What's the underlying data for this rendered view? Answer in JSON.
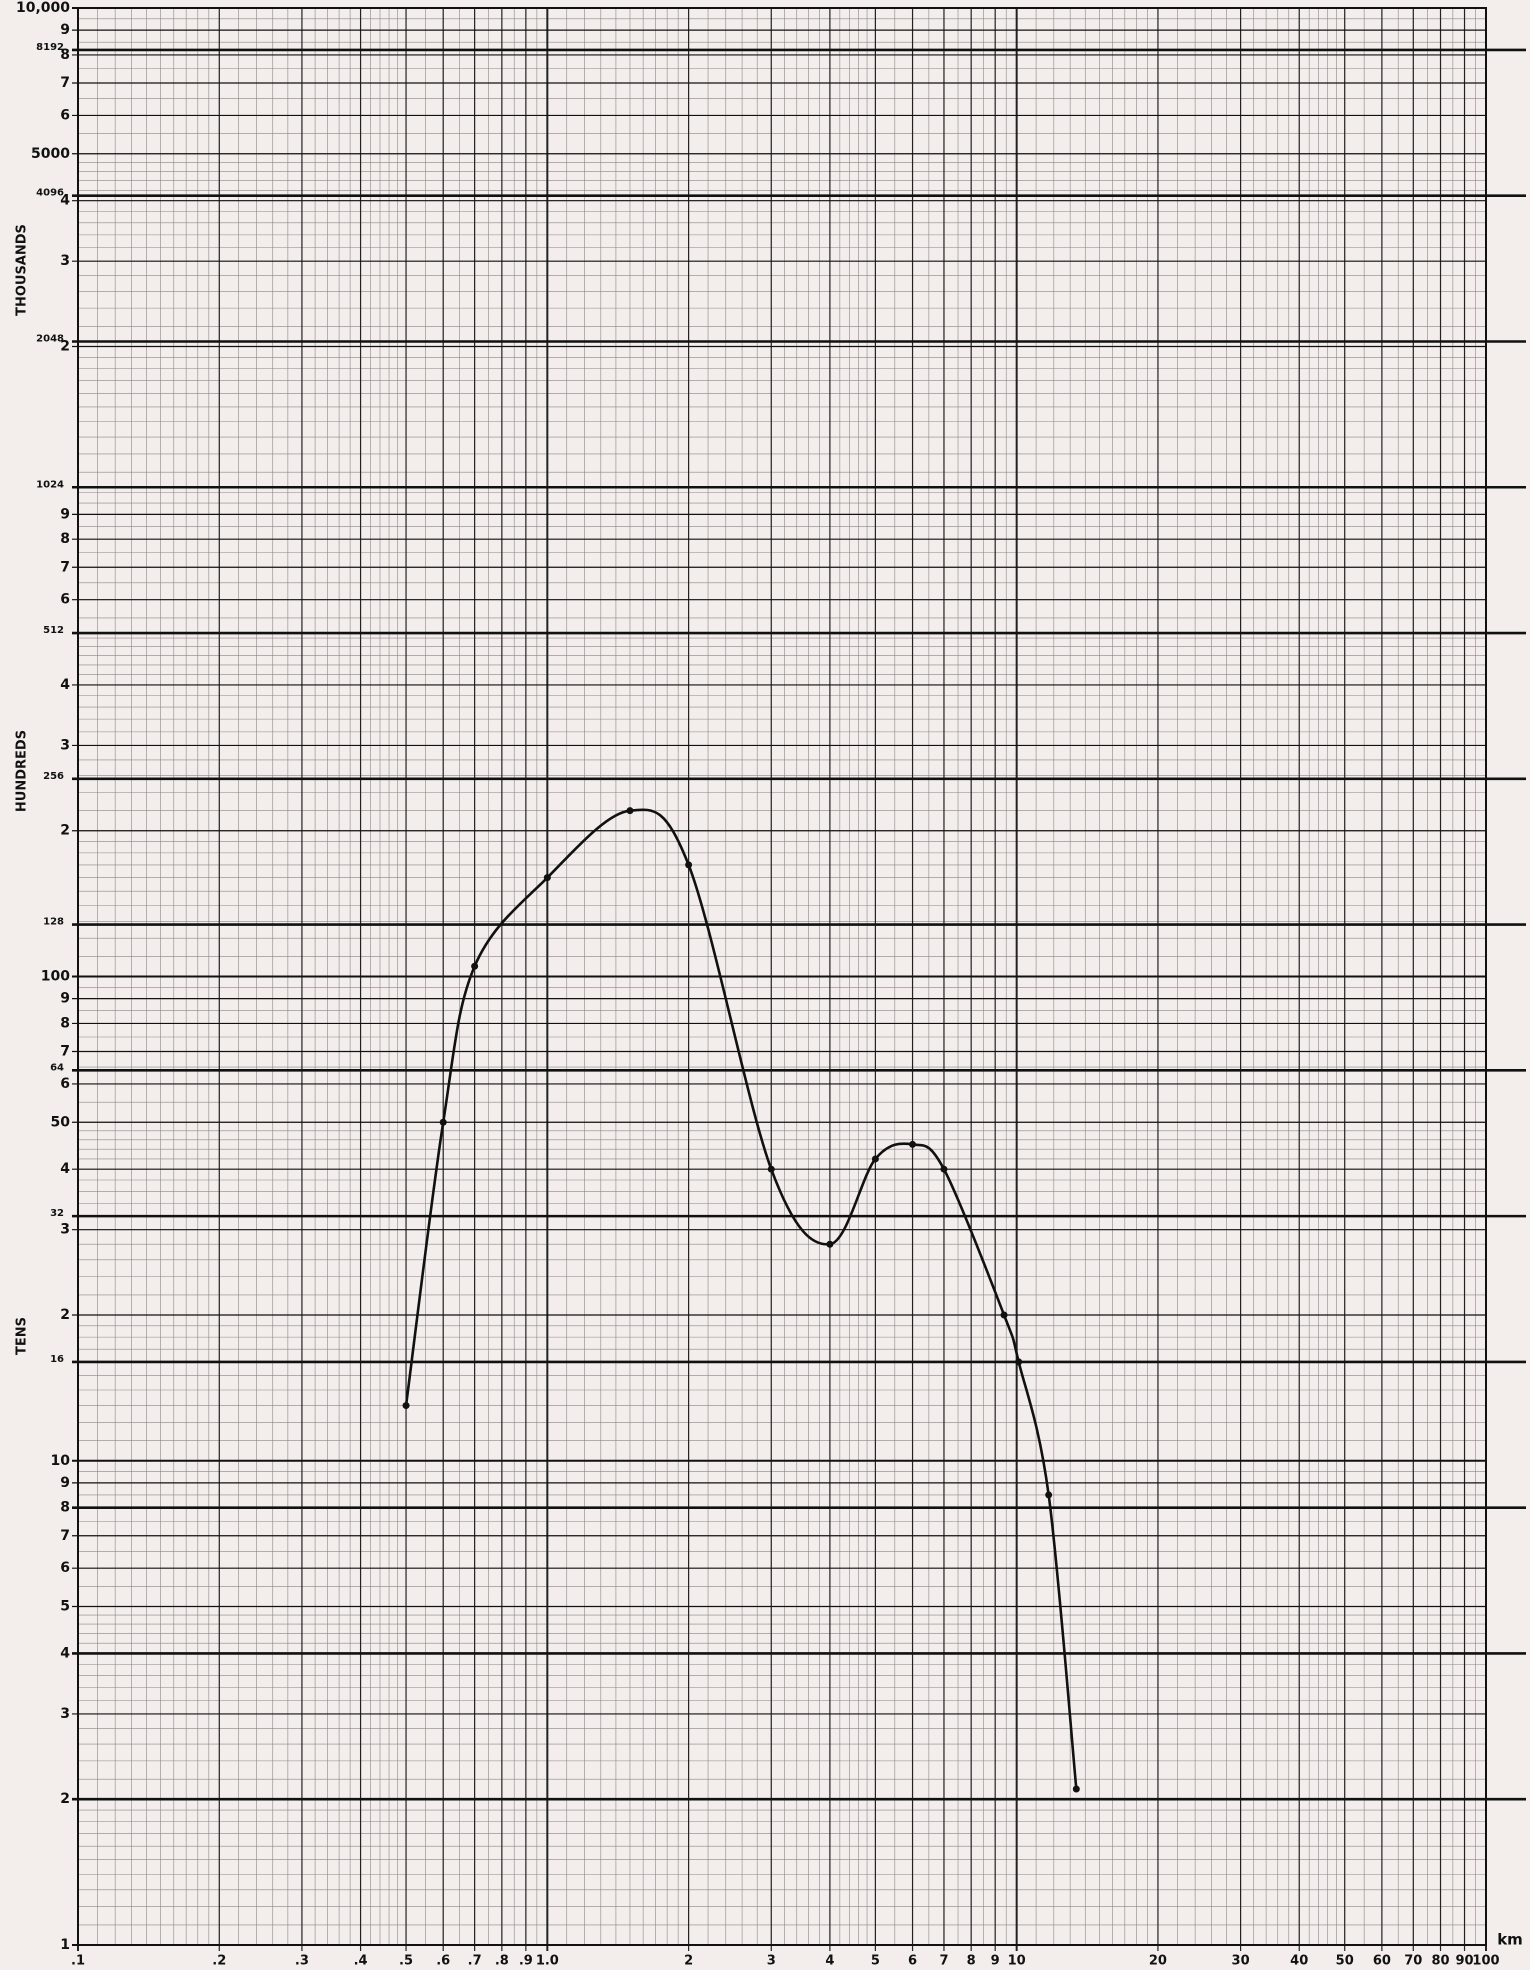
{
  "chart_data": {
    "type": "line",
    "axis_labels": {
      "thousands": "THOUSANDS",
      "hundreds": "HUNDREDS",
      "tens": "TENS"
    },
    "x_unit": "km",
    "x": [
      0.5,
      0.6,
      0.7,
      1.0,
      1.5,
      2.0,
      3.0,
      4.0,
      5.0,
      6.0,
      7.0,
      9.4,
      10.1,
      11.7,
      13.4
    ],
    "values": [
      13,
      50,
      105,
      160,
      220,
      170,
      40,
      28,
      42,
      45,
      40,
      20,
      16,
      8.5,
      2.1
    ],
    "color": "#111111",
    "xscale": "log",
    "yscale": "log",
    "xlim": [
      0.1,
      100
    ],
    "ylim": [
      1,
      10000
    ],
    "xticks": [
      {
        "value": 0.1,
        "label": ".1"
      },
      {
        "value": 0.2,
        "label": ".2"
      },
      {
        "value": 0.3,
        "label": ".3"
      },
      {
        "value": 0.4,
        "label": ".4"
      },
      {
        "value": 0.5,
        "label": ".5"
      },
      {
        "value": 0.6,
        "label": ".6"
      },
      {
        "value": 0.7,
        "label": ".7"
      },
      {
        "value": 0.8,
        "label": ".8"
      },
      {
        "value": 0.9,
        "label": ".9"
      },
      {
        "value": 1,
        "label": "1.0"
      },
      2,
      3,
      4,
      5,
      6,
      7,
      8,
      9,
      10,
      20,
      30,
      40,
      50,
      60,
      70,
      80,
      90,
      100
    ],
    "yticks": [
      {
        "value": 10000,
        "label": "10,000"
      },
      {
        "value": 9000,
        "label": "9"
      },
      8192,
      {
        "value": 8000,
        "label": "8"
      },
      {
        "value": 7000,
        "label": "7"
      },
      {
        "value": 6000,
        "label": "6"
      },
      5000,
      4096,
      {
        "value": 4000,
        "label": "4"
      },
      {
        "value": 3000,
        "label": "3"
      },
      2048,
      {
        "value": 2000,
        "label": "2"
      },
      1024,
      {
        "value": 900,
        "label": "9"
      },
      {
        "value": 800,
        "label": "8"
      },
      {
        "value": 700,
        "label": "7"
      },
      {
        "value": 600,
        "label": "6"
      },
      512,
      {
        "value": 400,
        "label": "4"
      },
      {
        "value": 300,
        "label": "3"
      },
      256,
      {
        "value": 200,
        "label": "2"
      },
      128,
      100,
      {
        "value": 90,
        "label": "9"
      },
      {
        "value": 80,
        "label": "8"
      },
      {
        "value": 70,
        "label": "7"
      },
      64,
      {
        "value": 60,
        "label": "6"
      },
      50,
      {
        "value": 40,
        "label": "4"
      },
      32,
      {
        "value": 30,
        "label": "3"
      },
      {
        "value": 20,
        "label": "2"
      },
      16,
      10,
      9,
      8,
      7,
      6,
      5,
      4,
      3,
      2,
      1
    ],
    "grid": true
  }
}
